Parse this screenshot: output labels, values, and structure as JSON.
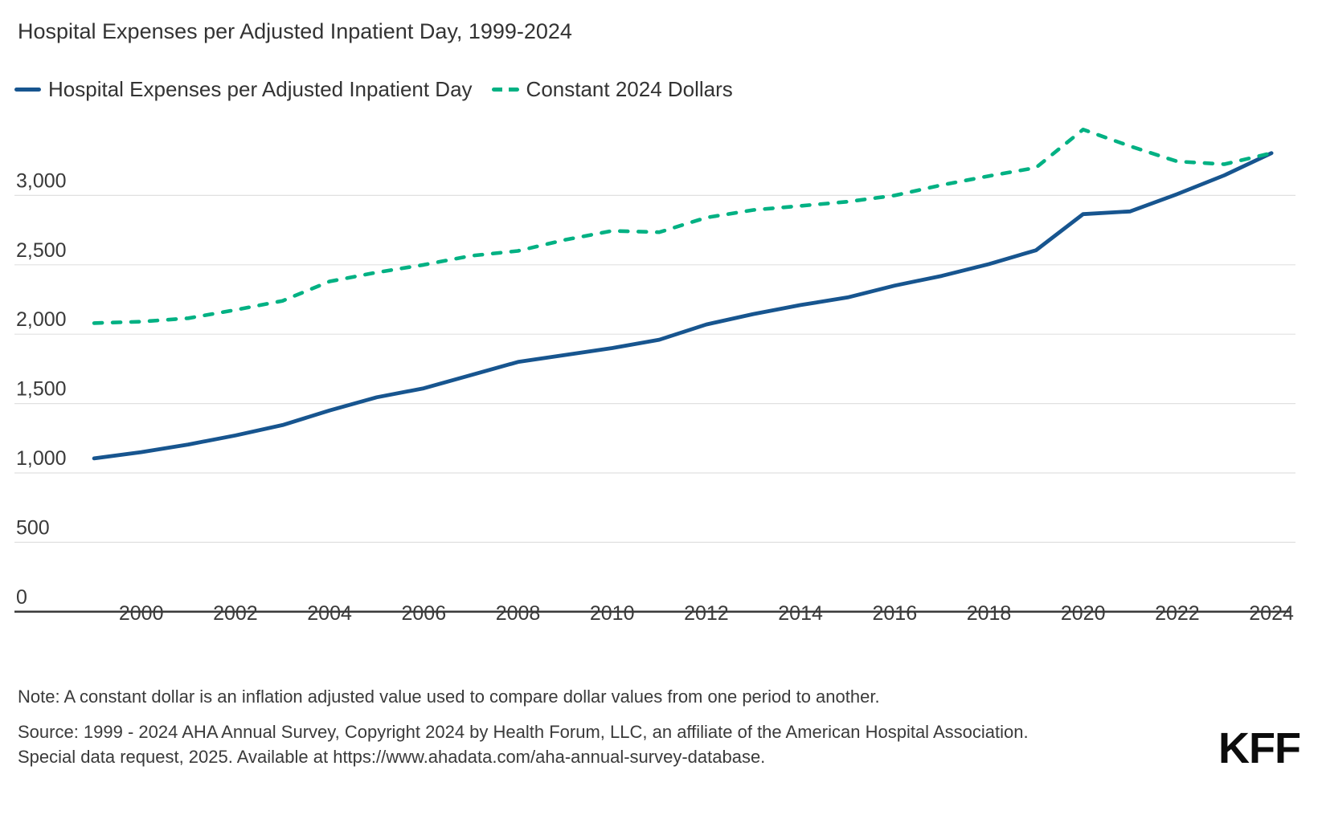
{
  "title": "Hospital Expenses per Adjusted Inpatient Day, 1999-2024",
  "colors": {
    "nominal_line": "#17558f",
    "constant_line": "#00b183",
    "axis": "#3d3d3d",
    "gridline": "#e0e0e0",
    "text": "#333333",
    "tick_text": "#3a3a3a"
  },
  "chart_data": {
    "type": "line",
    "title": "Hospital Expenses per Adjusted Inpatient Day, 1999-2024",
    "x": [
      1999,
      2000,
      2001,
      2002,
      2003,
      2004,
      2005,
      2006,
      2007,
      2008,
      2009,
      2010,
      2011,
      2012,
      2013,
      2014,
      2015,
      2016,
      2017,
      2018,
      2019,
      2020,
      2021,
      2022,
      2023,
      2024
    ],
    "series": [
      {
        "name": "Hospital Expenses per Adjusted Inpatient Day",
        "color": "#17558f",
        "line_style": "solid",
        "values": [
          1105,
          1150,
          1205,
          1270,
          1345,
          1450,
          1545,
          1610,
          1705,
          1800,
          1850,
          1900,
          1960,
          2070,
          2145,
          2210,
          2265,
          2350,
          2420,
          2505,
          2605,
          2865,
          2885,
          3010,
          3145,
          3305
        ]
      },
      {
        "name": "Constant 2024 Dollars",
        "color": "#00b183",
        "line_style": "dashed",
        "values": [
          2080,
          2090,
          2115,
          2175,
          2240,
          2380,
          2445,
          2500,
          2565,
          2600,
          2680,
          2745,
          2735,
          2840,
          2895,
          2925,
          2955,
          3000,
          3075,
          3140,
          3200,
          3475,
          3355,
          3245,
          3225,
          3305
        ]
      }
    ],
    "ylim": [
      0,
      3500
    ],
    "yticks": [
      0,
      500,
      1000,
      1500,
      2000,
      2500,
      3000
    ],
    "ytick_labels": [
      "0",
      "500",
      "1,000",
      "1,500",
      "2,000",
      "2,500",
      "3,000"
    ],
    "xticks": [
      2000,
      2002,
      2004,
      2006,
      2008,
      2010,
      2012,
      2014,
      2016,
      2018,
      2020,
      2022,
      2024
    ],
    "xtick_labels": [
      "2000",
      "2002",
      "2004",
      "2006",
      "2008",
      "2010",
      "2012",
      "2014",
      "2016",
      "2018",
      "2020",
      "2022",
      "2024"
    ],
    "grid": "horizontal-only",
    "legend_position": "top-left"
  },
  "note": "Note: A constant dollar is an inflation adjusted value used to compare dollar values from one period to another.",
  "source": {
    "line1": "Source: 1999 - 2024 AHA Annual Survey, Copyright 2024 by Health Forum, LLC, an affiliate of the American Hospital Association.",
    "line2": "Special data request, 2025. Available at https://www.ahadata.com/aha-annual-survey-database."
  },
  "logo": "KFF"
}
